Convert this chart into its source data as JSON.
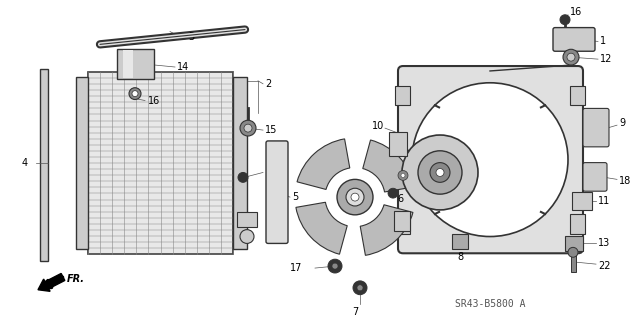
{
  "background_color": "#ffffff",
  "diagram_code": "SR43-B5800 A",
  "gray": "#555555",
  "dgray": "#333333",
  "lgray": "#aaaaaa"
}
